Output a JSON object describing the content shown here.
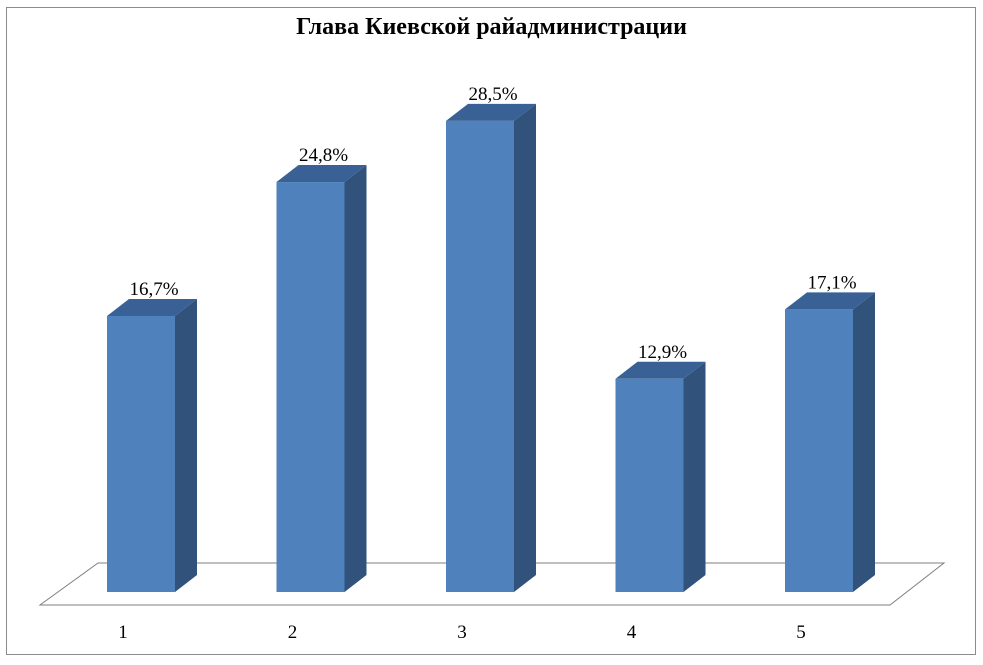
{
  "chart_data": {
    "type": "bar",
    "title": "Глава Киевской райадминистрации",
    "categories": [
      "1",
      "2",
      "3",
      "4",
      "5"
    ],
    "values": [
      16.7,
      24.8,
      28.5,
      12.9,
      17.1
    ],
    "value_labels": [
      "16,7%",
      "24,8%",
      "28,5%",
      "12,9%",
      "17,1%"
    ],
    "ylim": [
      0,
      30
    ],
    "grid": false,
    "legend": "none",
    "colors": {
      "front": "#4f81bd",
      "side": "#31527a",
      "top": "#3a6196"
    }
  }
}
